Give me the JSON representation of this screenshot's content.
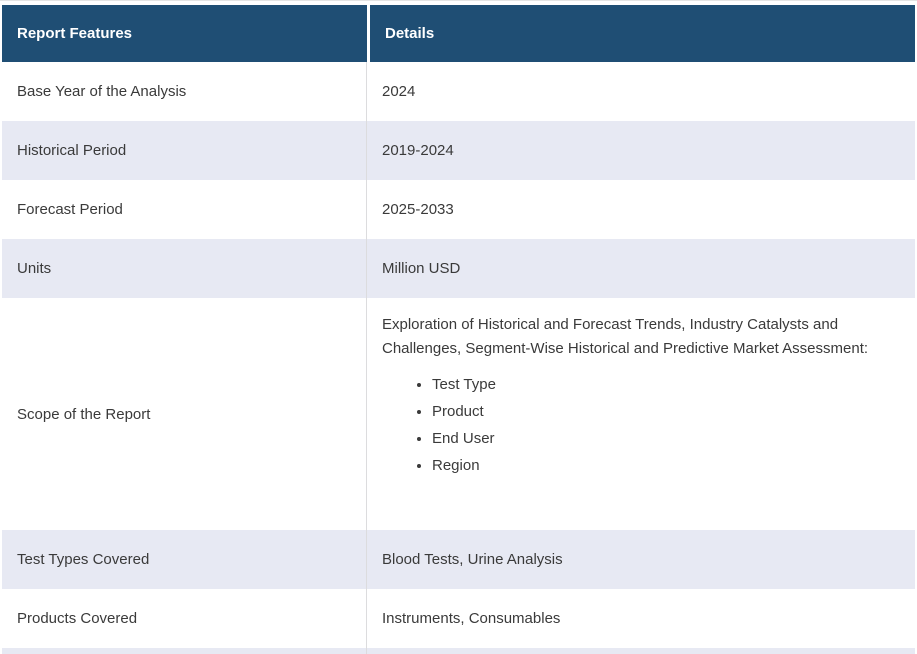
{
  "table": {
    "header": {
      "features_label": "Report Features",
      "details_label": "Details"
    },
    "rows": [
      {
        "feature": "Base Year of the Analysis",
        "details": "2024"
      },
      {
        "feature": "Historical Period",
        "details": "2019-2024"
      },
      {
        "feature": "Forecast Period",
        "details": "2025-2033"
      },
      {
        "feature": "Units",
        "details": "Million USD"
      },
      {
        "feature": "Scope of the Report",
        "details_intro": "Exploration of Historical and Forecast Trends, Industry Catalysts and Challenges, Segment-Wise Historical and Predictive Market Assessment:",
        "details_bullets": [
          "Test Type",
          "Product",
          "End User",
          "Region"
        ]
      },
      {
        "feature": "Test Types Covered",
        "details": "Blood Tests, Urine Analysis"
      },
      {
        "feature": "Products Covered",
        "details": "Instruments, Consumables"
      }
    ]
  },
  "colors": {
    "header_bg": "#1f4e74",
    "header_text": "#ffffff",
    "stripe_bg": "#e7e9f3",
    "row_bg": "#ffffff",
    "divider": "#dcdcde",
    "body_text": "#3a3a3a"
  }
}
